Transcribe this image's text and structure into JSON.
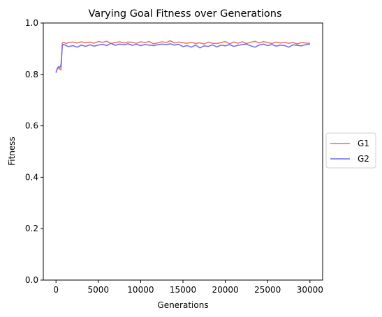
{
  "chart_data": {
    "type": "line",
    "title": "Varying Goal Fitness over Generations",
    "xlabel": "Generations",
    "ylabel": "Fitness",
    "xlim": [
      -1500,
      31500
    ],
    "ylim": [
      0.0,
      1.0
    ],
    "xticks": [
      0,
      5000,
      10000,
      15000,
      20000,
      25000,
      30000
    ],
    "yticks": [
      0.0,
      0.2,
      0.4,
      0.6,
      0.8,
      1.0
    ],
    "xtick_labels": [
      "0",
      "5000",
      "10000",
      "15000",
      "20000",
      "25000",
      "30000"
    ],
    "ytick_labels": [
      "0.0",
      "0.2",
      "0.4",
      "0.6",
      "0.8",
      "1.0"
    ],
    "grid": false,
    "legend_placement": "outside-right",
    "series": [
      {
        "name": "G1",
        "color": "#f26b62",
        "x": [
          0,
          150,
          300,
          450,
          600,
          750,
          900,
          1200,
          1500,
          2000,
          2500,
          3000,
          3500,
          4000,
          4500,
          5000,
          5500,
          6000,
          6500,
          7000,
          7500,
          8000,
          8500,
          9000,
          9500,
          10000,
          10500,
          11000,
          11500,
          12000,
          12500,
          13000,
          13500,
          14000,
          14500,
          15000,
          15500,
          16000,
          16500,
          17000,
          17500,
          18000,
          18500,
          19000,
          19500,
          20000,
          20500,
          21000,
          21500,
          22000,
          22500,
          23000,
          23500,
          24000,
          24500,
          25000,
          25500,
          26000,
          26500,
          27000,
          27500,
          28000,
          28500,
          29000,
          29500,
          30000
        ],
        "values": [
          0.81,
          0.82,
          0.826,
          0.82,
          0.818,
          0.922,
          0.925,
          0.92,
          0.924,
          0.926,
          0.922,
          0.927,
          0.923,
          0.926,
          0.921,
          0.928,
          0.925,
          0.929,
          0.92,
          0.924,
          0.927,
          0.922,
          0.926,
          0.925,
          0.921,
          0.927,
          0.924,
          0.928,
          0.919,
          0.922,
          0.927,
          0.924,
          0.931,
          0.922,
          0.926,
          0.923,
          0.921,
          0.925,
          0.92,
          0.923,
          0.918,
          0.926,
          0.921,
          0.92,
          0.924,
          0.928,
          0.919,
          0.926,
          0.921,
          0.927,
          0.92,
          0.925,
          0.929,
          0.922,
          0.928,
          0.924,
          0.92,
          0.926,
          0.922,
          0.925,
          0.921,
          0.924,
          0.918,
          0.924,
          0.922,
          0.921
        ]
      },
      {
        "name": "G2",
        "color": "#6b6bf0",
        "x": [
          0,
          150,
          300,
          450,
          600,
          750,
          900,
          1200,
          1500,
          2000,
          2500,
          3000,
          3500,
          4000,
          4500,
          5000,
          5500,
          6000,
          6500,
          7000,
          7500,
          8000,
          8500,
          9000,
          9500,
          10000,
          10500,
          11000,
          11500,
          12000,
          12500,
          13000,
          13500,
          14000,
          14500,
          15000,
          15500,
          16000,
          16500,
          17000,
          17500,
          18000,
          18500,
          19000,
          19500,
          20000,
          20500,
          21000,
          21500,
          22000,
          22500,
          23000,
          23500,
          24000,
          24500,
          25000,
          25500,
          26000,
          26500,
          27000,
          27500,
          28000,
          28500,
          29000,
          29500,
          30000
        ],
        "values": [
          0.806,
          0.823,
          0.83,
          0.826,
          0.84,
          0.912,
          0.917,
          0.912,
          0.908,
          0.912,
          0.906,
          0.914,
          0.909,
          0.915,
          0.91,
          0.914,
          0.917,
          0.912,
          0.921,
          0.913,
          0.918,
          0.915,
          0.919,
          0.913,
          0.917,
          0.912,
          0.916,
          0.914,
          0.912,
          0.915,
          0.918,
          0.916,
          0.919,
          0.914,
          0.917,
          0.908,
          0.912,
          0.906,
          0.914,
          0.903,
          0.911,
          0.909,
          0.915,
          0.907,
          0.914,
          0.911,
          0.916,
          0.909,
          0.913,
          0.916,
          0.918,
          0.911,
          0.906,
          0.914,
          0.918,
          0.912,
          0.916,
          0.91,
          0.914,
          0.912,
          0.906,
          0.915,
          0.913,
          0.911,
          0.916,
          0.918
        ]
      }
    ]
  }
}
